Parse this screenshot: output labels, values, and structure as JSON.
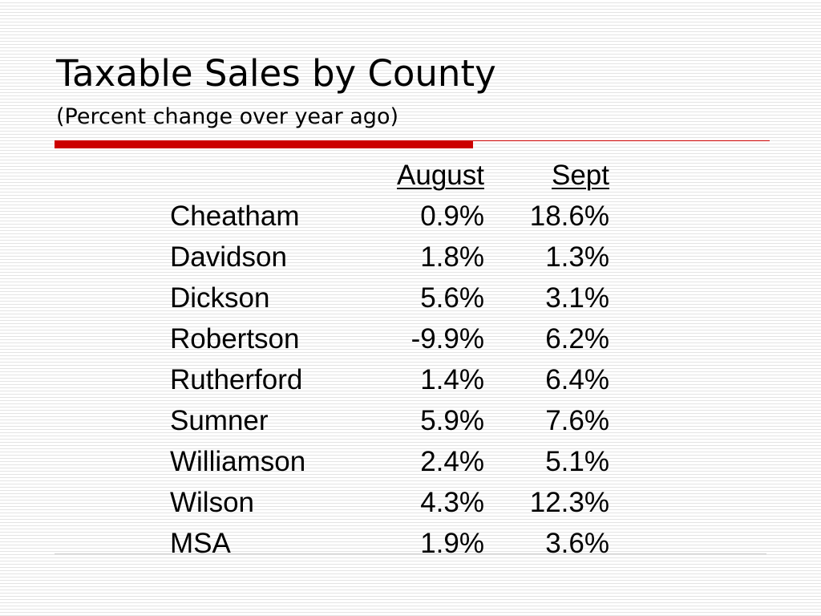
{
  "slide": {
    "title": "Taxable Sales by County",
    "subtitle": "(Percent change over year ago)"
  },
  "table": {
    "headers": {
      "county": "",
      "august": "August",
      "sept": "Sept"
    },
    "rows": [
      {
        "county": "Cheatham",
        "august": "0.9%",
        "sept": "18.6%"
      },
      {
        "county": "Davidson",
        "august": "1.8%",
        "sept": "1.3%"
      },
      {
        "county": "Dickson",
        "august": "5.6%",
        "sept": "3.1%"
      },
      {
        "county": "Robertson",
        "august": "-9.9%",
        "sept": "6.2%"
      },
      {
        "county": "Rutherford",
        "august": "1.4%",
        "sept": "6.4%"
      },
      {
        "county": "Sumner",
        "august": "5.9%",
        "sept": "7.6%"
      },
      {
        "county": "Williamson",
        "august": "2.4%",
        "sept": "5.1%"
      },
      {
        "county": "Wilson",
        "august": "4.3%",
        "sept": "12.3%"
      },
      {
        "county": "MSA",
        "august": "1.9%",
        "sept": "3.6%"
      }
    ]
  },
  "colors": {
    "accent_rule": "#cc0000",
    "background_stripe": "#e4e4e4"
  }
}
